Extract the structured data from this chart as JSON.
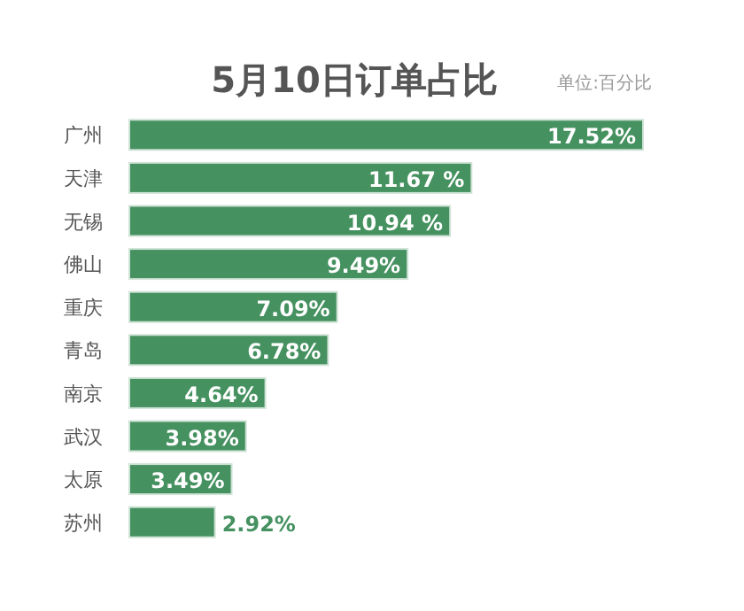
{
  "chart_data": {
    "type": "bar",
    "orientation": "horizontal",
    "title": "5月10日订单占比",
    "annotations": [
      "单位:百分比"
    ],
    "categories": [
      "广州",
      "天津",
      "无锡",
      "佛山",
      "重庆",
      "青岛",
      "南京",
      "武汉",
      "太原",
      "苏州"
    ],
    "values": [
      17.52,
      11.67,
      10.94,
      9.49,
      7.09,
      6.78,
      4.64,
      3.98,
      3.49,
      2.92
    ],
    "value_labels": [
      "17.52%",
      "11.67 %",
      "10.94 %",
      "9.49%",
      "7.09%",
      "6.78%",
      "4.64%",
      "3.98%",
      "3.49%",
      "2.92%"
    ],
    "color": "#459160"
  }
}
